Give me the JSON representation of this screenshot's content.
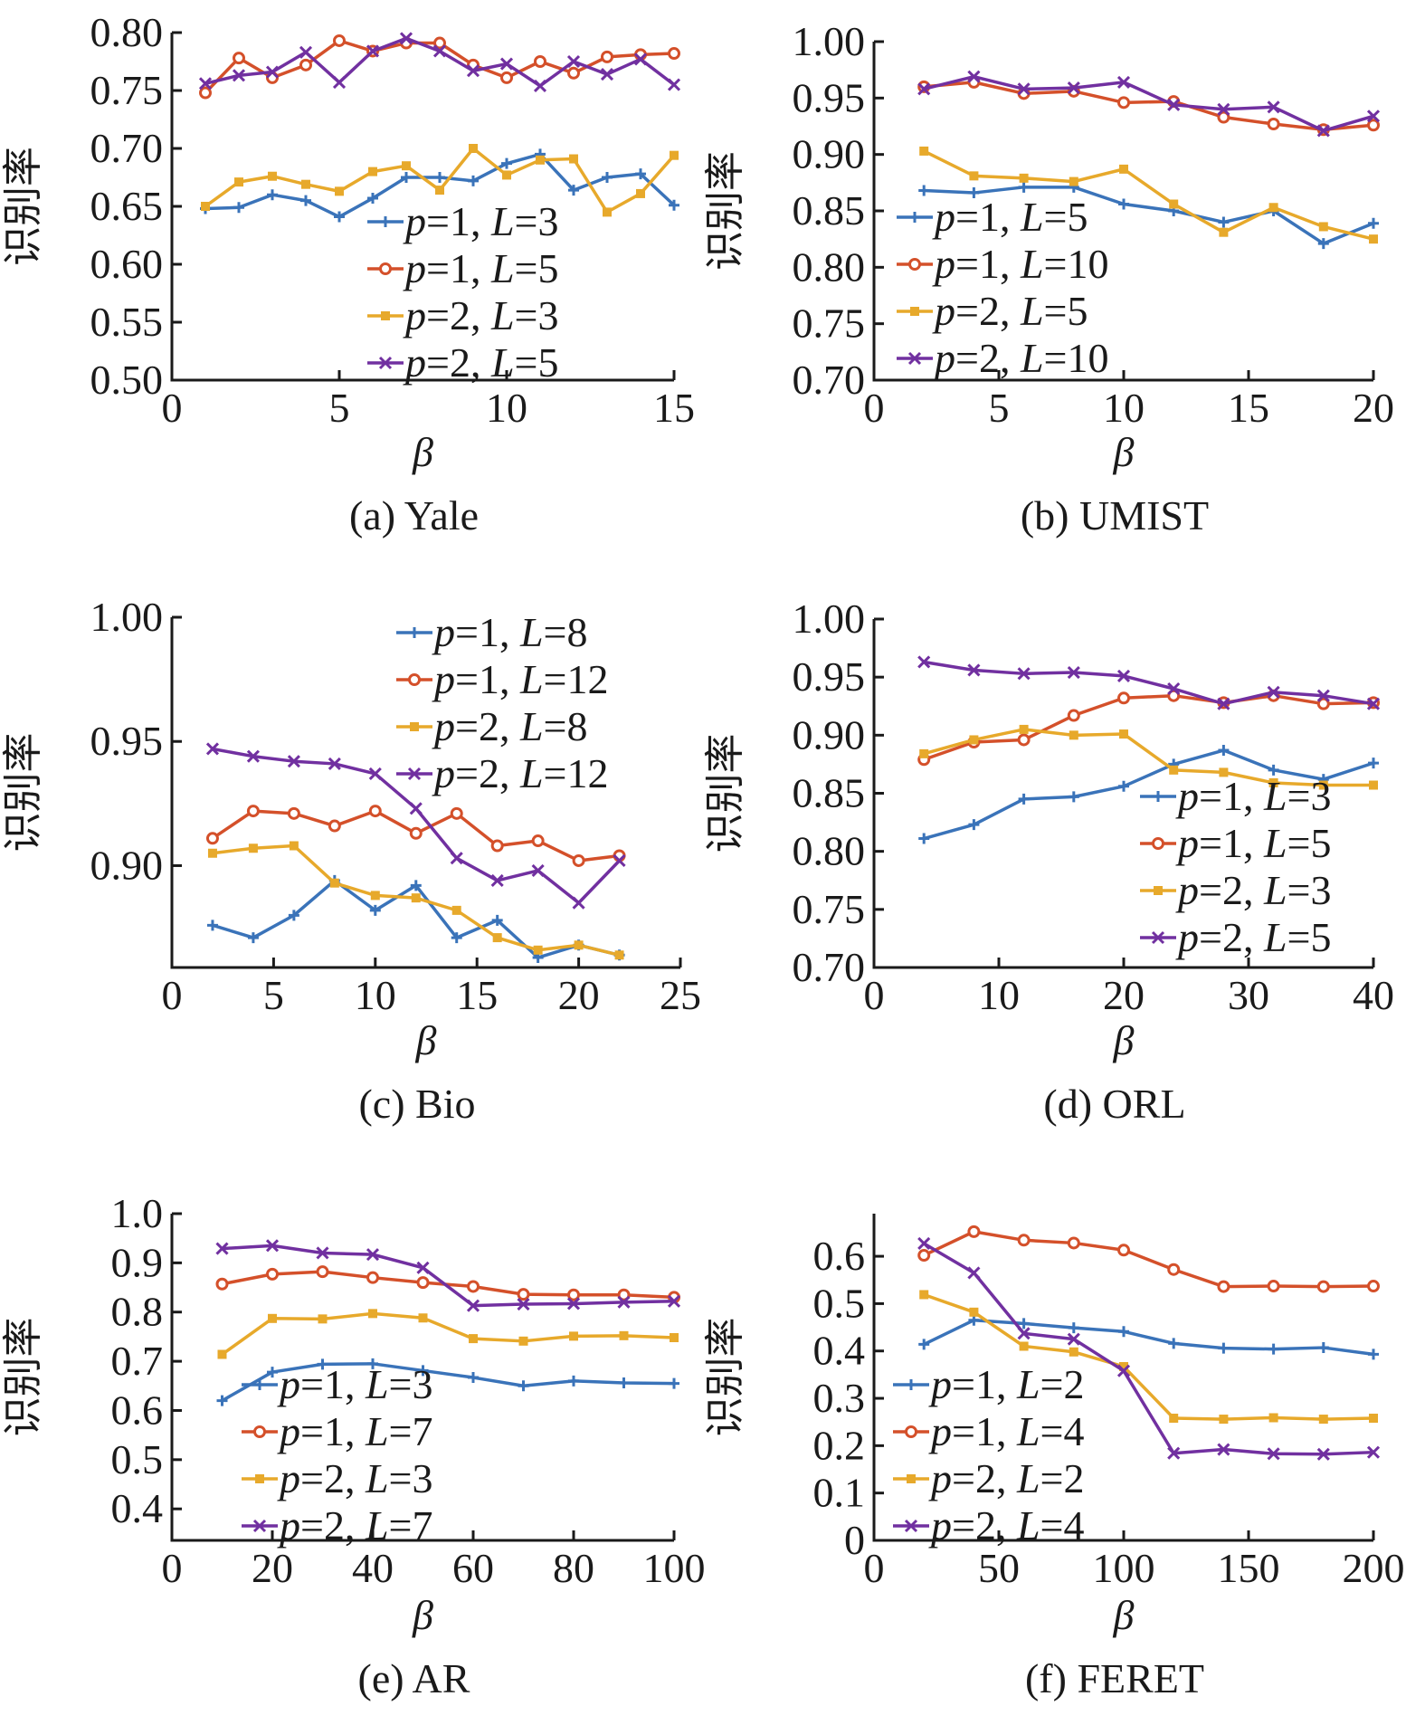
{
  "colors": {
    "blue": "#3a73b9",
    "red": "#d4502a",
    "yellow": "#e7a92b",
    "purple": "#7130a0",
    "axis": "#1a1a1a"
  },
  "chart_data": [
    {
      "type": "line",
      "title": "(a) Yale",
      "xlabel": "β",
      "ylabel": "识别率",
      "xlim": [
        0,
        15
      ],
      "ylim": [
        0.5,
        0.8
      ],
      "xticks": [
        0,
        5,
        10,
        15
      ],
      "xtick_labels": [
        "0",
        "5",
        "10",
        "15"
      ],
      "yticks": [
        0.5,
        0.55,
        0.6,
        0.65,
        0.7,
        0.75,
        0.8
      ],
      "ytick_labels": [
        "0.50",
        "0.55",
        "0.60",
        "0.65",
        "0.70",
        "0.75",
        "0.80"
      ],
      "legend_position": "center-right",
      "grid": false,
      "x": [
        1,
        2,
        3,
        4,
        5,
        6,
        7,
        8,
        9,
        10,
        11,
        12,
        13,
        14,
        15
      ],
      "series": [
        {
          "name": "p=1, L=3",
          "p": "1",
          "L": "3",
          "color": "blue",
          "marker": "plus",
          "values": [
            0.648,
            0.649,
            0.66,
            0.655,
            0.641,
            0.657,
            0.675,
            0.675,
            0.672,
            0.687,
            0.695,
            0.664,
            0.675,
            0.678,
            0.651
          ]
        },
        {
          "name": "p=1, L=5",
          "p": "1",
          "L": "5",
          "color": "red",
          "marker": "circle",
          "values": [
            0.748,
            0.778,
            0.761,
            0.772,
            0.793,
            0.784,
            0.791,
            0.791,
            0.772,
            0.761,
            0.775,
            0.765,
            0.779,
            0.781,
            0.782
          ]
        },
        {
          "name": "p=2, L=3",
          "p": "2",
          "L": "3",
          "color": "yellow",
          "marker": "square",
          "values": [
            0.65,
            0.671,
            0.676,
            0.669,
            0.663,
            0.68,
            0.685,
            0.664,
            0.7,
            0.677,
            0.69,
            0.691,
            0.645,
            0.661,
            0.694
          ]
        },
        {
          "name": "p=2, L=5",
          "p": "2",
          "L": "5",
          "color": "purple",
          "marker": "x",
          "values": [
            0.756,
            0.763,
            0.766,
            0.783,
            0.757,
            0.784,
            0.795,
            0.784,
            0.767,
            0.773,
            0.754,
            0.775,
            0.764,
            0.777,
            0.755
          ]
        }
      ]
    },
    {
      "type": "line",
      "title": "(b) UMIST",
      "xlabel": "β",
      "ylabel": "识别率",
      "xlim": [
        0,
        20
      ],
      "ylim": [
        0.7,
        1.0
      ],
      "xticks": [
        0,
        5,
        10,
        15,
        20
      ],
      "xtick_labels": [
        "0",
        "5",
        "10",
        "15",
        "20"
      ],
      "yticks": [
        0.7,
        0.75,
        0.8,
        0.85,
        0.9,
        0.95,
        1.0
      ],
      "ytick_labels": [
        "0.70",
        "0.75",
        "0.80",
        "0.85",
        "0.90",
        "0.95",
        "1.00"
      ],
      "legend_position": "lower-left",
      "grid": false,
      "x": [
        2,
        4,
        6,
        8,
        10,
        12,
        14,
        16,
        18,
        20
      ],
      "series": [
        {
          "name": "p=1, L=5",
          "p": "1",
          "L": "5",
          "color": "blue",
          "marker": "plus",
          "values": [
            0.868,
            0.866,
            0.871,
            0.871,
            0.856,
            0.85,
            0.84,
            0.85,
            0.821,
            0.839
          ]
        },
        {
          "name": "p=1, L=10",
          "p": "1",
          "L": "10",
          "color": "red",
          "marker": "circle",
          "values": [
            0.96,
            0.964,
            0.954,
            0.956,
            0.946,
            0.947,
            0.933,
            0.927,
            0.922,
            0.926
          ]
        },
        {
          "name": "p=2, L=5",
          "p": "2",
          "L": "5",
          "color": "yellow",
          "marker": "square",
          "values": [
            0.903,
            0.881,
            0.879,
            0.876,
            0.887,
            0.856,
            0.831,
            0.853,
            0.836,
            0.825
          ]
        },
        {
          "name": "p=2, L=10",
          "p": "2",
          "L": "10",
          "color": "purple",
          "marker": "x",
          "values": [
            0.958,
            0.969,
            0.958,
            0.959,
            0.964,
            0.944,
            0.94,
            0.942,
            0.921,
            0.934
          ]
        }
      ]
    },
    {
      "type": "line",
      "title": "(c) Bio",
      "xlabel": "β",
      "ylabel": "识别率",
      "xlim": [
        0,
        25
      ],
      "ylim": [
        0.859,
        1.0
      ],
      "xticks": [
        0,
        5,
        10,
        15,
        20,
        25
      ],
      "xtick_labels": [
        "0",
        "5",
        "10",
        "15",
        "20",
        "25"
      ],
      "yticks": [
        0.9,
        0.95,
        1.0
      ],
      "ytick_labels": [
        "0.90",
        "0.95",
        "1.00"
      ],
      "legend_position": "top-right",
      "grid": false,
      "x": [
        2,
        4,
        6,
        8,
        10,
        12,
        14,
        16,
        18,
        20,
        22
      ],
      "series": [
        {
          "name": "p=1, L=8",
          "p": "1",
          "L": "8",
          "color": "blue",
          "marker": "plus",
          "values": [
            0.876,
            0.871,
            0.88,
            0.894,
            0.882,
            0.892,
            0.871,
            0.878,
            0.863,
            0.868,
            0.864
          ]
        },
        {
          "name": "p=1, L=12",
          "p": "1",
          "L": "12",
          "color": "red",
          "marker": "circle",
          "values": [
            0.911,
            0.922,
            0.921,
            0.916,
            0.922,
            0.913,
            0.921,
            0.908,
            0.91,
            0.902,
            0.904
          ]
        },
        {
          "name": "p=2, L=8",
          "p": "2",
          "L": "8",
          "color": "yellow",
          "marker": "square",
          "values": [
            0.905,
            0.907,
            0.908,
            0.893,
            0.888,
            0.887,
            0.882,
            0.871,
            0.866,
            0.868,
            0.864
          ]
        },
        {
          "name": "p=2, L=12",
          "p": "2",
          "L": "12",
          "color": "purple",
          "marker": "x",
          "values": [
            0.947,
            0.944,
            0.942,
            0.941,
            0.937,
            0.923,
            0.903,
            0.894,
            0.898,
            0.885,
            0.902
          ]
        }
      ]
    },
    {
      "type": "line",
      "title": "(d) ORL",
      "xlabel": "β",
      "ylabel": "识别率",
      "xlim": [
        0,
        40
      ],
      "ylim": [
        0.7,
        1.0
      ],
      "xticks": [
        0,
        10,
        20,
        30,
        40
      ],
      "xtick_labels": [
        "0",
        "10",
        "20",
        "30",
        "40"
      ],
      "yticks": [
        0.7,
        0.75,
        0.8,
        0.85,
        0.9,
        0.95,
        1.0
      ],
      "ytick_labels": [
        "0.70",
        "0.75",
        "0.80",
        "0.85",
        "0.90",
        "0.95",
        "1.00"
      ],
      "legend_position": "lower-right",
      "grid": false,
      "x": [
        4,
        8,
        12,
        16,
        20,
        24,
        28,
        32,
        36,
        40
      ],
      "series": [
        {
          "name": "p=1, L=3",
          "p": "1",
          "L": "3",
          "color": "blue",
          "marker": "plus",
          "values": [
            0.811,
            0.823,
            0.845,
            0.847,
            0.856,
            0.875,
            0.887,
            0.87,
            0.862,
            0.876
          ]
        },
        {
          "name": "p=1, L=5",
          "p": "1",
          "L": "5",
          "color": "red",
          "marker": "circle",
          "values": [
            0.879,
            0.894,
            0.896,
            0.917,
            0.932,
            0.934,
            0.928,
            0.934,
            0.927,
            0.928
          ]
        },
        {
          "name": "p=2, L=3",
          "p": "2",
          "L": "3",
          "color": "yellow",
          "marker": "square",
          "values": [
            0.884,
            0.896,
            0.905,
            0.9,
            0.901,
            0.87,
            0.868,
            0.859,
            0.857,
            0.857
          ]
        },
        {
          "name": "p=2, L=5",
          "p": "2",
          "L": "5",
          "color": "purple",
          "marker": "x",
          "values": [
            0.963,
            0.956,
            0.953,
            0.954,
            0.951,
            0.94,
            0.927,
            0.937,
            0.934,
            0.927
          ]
        }
      ]
    },
    {
      "type": "line",
      "title": "(e) AR",
      "xlabel": "β",
      "ylabel": "识别率",
      "xlim": [
        0,
        100
      ],
      "ylim": [
        0.336,
        1.0
      ],
      "xticks": [
        0,
        20,
        40,
        60,
        80,
        100
      ],
      "xtick_labels": [
        "0",
        "20",
        "40",
        "60",
        "80",
        "100"
      ],
      "yticks": [
        0.4,
        0.5,
        0.6,
        0.7,
        0.8,
        0.9,
        1.0
      ],
      "ytick_labels": [
        "0.4",
        "0.5",
        "0.6",
        "0.7",
        "0.8",
        "0.9",
        "1.0"
      ],
      "legend_position": "lower-left",
      "grid": false,
      "x": [
        10,
        20,
        30,
        40,
        50,
        60,
        70,
        80,
        90,
        100
      ],
      "series": [
        {
          "name": "p=1, L=3",
          "p": "1",
          "L": "3",
          "color": "blue",
          "marker": "plus",
          "values": [
            0.62,
            0.678,
            0.694,
            0.695,
            0.681,
            0.667,
            0.65,
            0.66,
            0.656,
            0.655
          ]
        },
        {
          "name": "p=1, L=7",
          "p": "1",
          "L": "7",
          "color": "red",
          "marker": "circle",
          "values": [
            0.857,
            0.877,
            0.882,
            0.87,
            0.86,
            0.852,
            0.836,
            0.835,
            0.835,
            0.83
          ]
        },
        {
          "name": "p=2, L=3",
          "p": "2",
          "L": "3",
          "color": "yellow",
          "marker": "square",
          "values": [
            0.714,
            0.787,
            0.786,
            0.797,
            0.788,
            0.746,
            0.741,
            0.751,
            0.752,
            0.748
          ]
        },
        {
          "name": "p=2, L=7",
          "p": "2",
          "L": "7",
          "color": "purple",
          "marker": "x",
          "values": [
            0.929,
            0.935,
            0.92,
            0.917,
            0.89,
            0.813,
            0.816,
            0.817,
            0.82,
            0.822
          ]
        }
      ]
    },
    {
      "type": "line",
      "title": "(f) FERET",
      "xlabel": "β",
      "ylabel": "识别率",
      "xlim": [
        0,
        200
      ],
      "ylim": [
        0,
        0.69
      ],
      "xticks": [
        0,
        50,
        100,
        150,
        200
      ],
      "xtick_labels": [
        "0",
        "50",
        "100",
        "150",
        "200"
      ],
      "yticks": [
        0,
        0.1,
        0.2,
        0.3,
        0.4,
        0.5,
        0.6
      ],
      "ytick_labels": [
        "0",
        "0.1",
        "0.2",
        "0.3",
        "0.4",
        "0.5",
        "0.6"
      ],
      "legend_position": "lower-left",
      "grid": false,
      "x": [
        20,
        40,
        60,
        80,
        100,
        120,
        140,
        160,
        180,
        200
      ],
      "series": [
        {
          "name": "p=1, L=2",
          "p": "1",
          "L": "2",
          "color": "blue",
          "marker": "plus",
          "values": [
            0.414,
            0.465,
            0.458,
            0.449,
            0.441,
            0.416,
            0.406,
            0.404,
            0.407,
            0.393
          ]
        },
        {
          "name": "p=1, L=4",
          "p": "1",
          "L": "4",
          "color": "red",
          "marker": "circle",
          "values": [
            0.602,
            0.652,
            0.634,
            0.628,
            0.613,
            0.572,
            0.536,
            0.537,
            0.536,
            0.537
          ]
        },
        {
          "name": "p=2, L=2",
          "p": "2",
          "L": "2",
          "color": "yellow",
          "marker": "square",
          "values": [
            0.519,
            0.482,
            0.41,
            0.398,
            0.367,
            0.258,
            0.256,
            0.259,
            0.256,
            0.258
          ]
        },
        {
          "name": "p=2, L=4",
          "p": "2",
          "L": "4",
          "color": "purple",
          "marker": "x",
          "values": [
            0.627,
            0.565,
            0.437,
            0.425,
            0.358,
            0.184,
            0.192,
            0.183,
            0.182,
            0.186
          ]
        }
      ]
    }
  ]
}
